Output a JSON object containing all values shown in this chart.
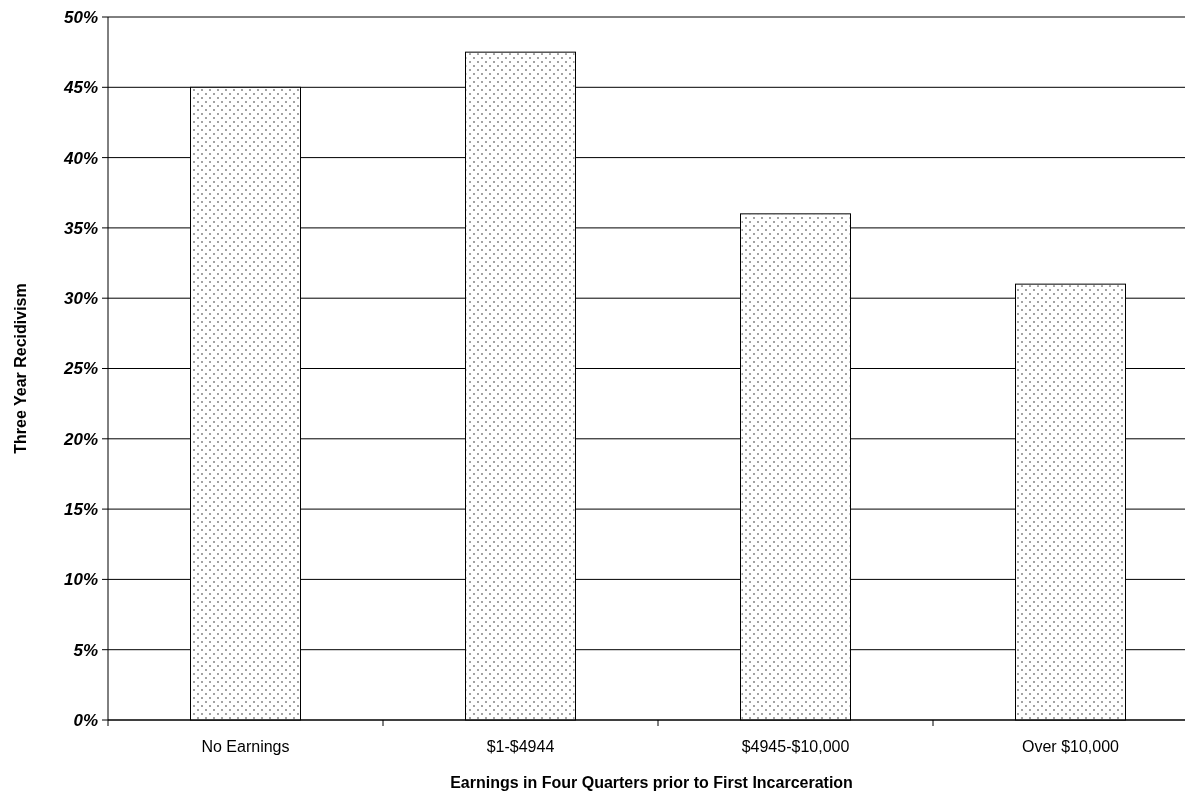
{
  "chart_data": {
    "type": "bar",
    "xlabel": "Earnings in Four Quarters prior to First Incarceration",
    "ylabel": "Three Year Recidivism",
    "categories": [
      "No Earnings",
      "$1-$4944",
      "$4945-$10,000",
      "Over $10,000"
    ],
    "values": [
      45,
      47.5,
      36,
      31
    ],
    "color": "#ffffff",
    "ylim": [
      0,
      50
    ],
    "yticks": [
      {
        "value": 0,
        "label": "0%"
      },
      {
        "value": 5,
        "label": "5%"
      },
      {
        "value": 10,
        "label": "10%"
      },
      {
        "value": 15,
        "label": "15%"
      },
      {
        "value": 20,
        "label": "20%"
      },
      {
        "value": 25,
        "label": "25%"
      },
      {
        "value": 30,
        "label": "30%"
      },
      {
        "value": 35,
        "label": "35%"
      },
      {
        "value": 40,
        "label": "40%"
      },
      {
        "value": 45,
        "label": "45%"
      },
      {
        "value": 50,
        "label": "50%"
      }
    ],
    "grid": "y"
  }
}
